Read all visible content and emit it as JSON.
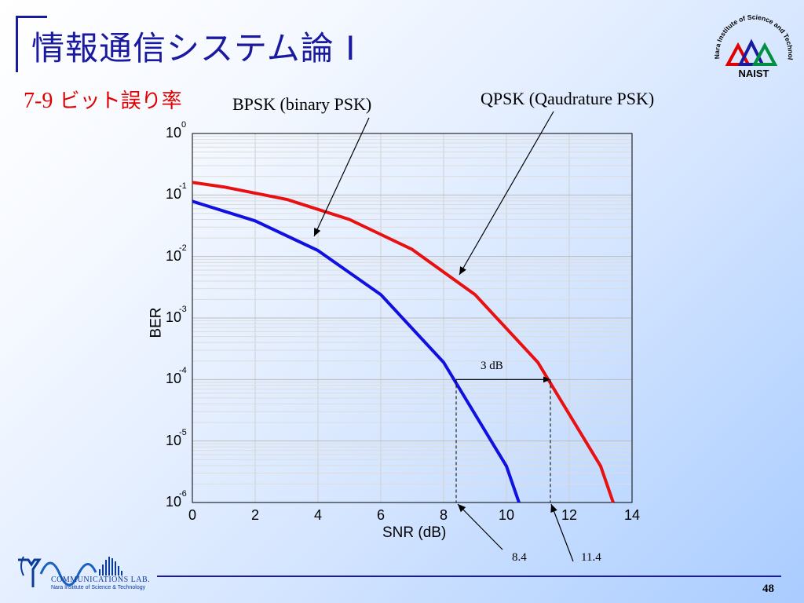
{
  "title": "情報通信システム論 I",
  "section": {
    "number": "7-9",
    "text": "ビット誤り率"
  },
  "labels": {
    "bpsk": "BPSK (binary PSK)",
    "qpsk": "QPSK (Qaudrature PSK)",
    "gap": "3 dB",
    "marker_left": "8.4",
    "marker_right": "11.4"
  },
  "logo": {
    "ring_text": "Nara Institute of Science and Technology",
    "short": "NAIST"
  },
  "lab": {
    "name": "COMMUNICATIONS LAB.",
    "sub": "Nara Institute of Science & Technology"
  },
  "page_number": "48",
  "colors": {
    "title": "#1a1aa0",
    "section": "#e00000",
    "bpsk": "#1010e0",
    "qpsk": "#e81010"
  },
  "chart_data": {
    "type": "line",
    "xlabel": "SNR (dB)",
    "ylabel": "BER",
    "xlim": [
      0,
      14
    ],
    "ylim_exponent": [
      -6,
      0
    ],
    "y_scale": "log",
    "x_ticks": [
      "0",
      "2",
      "4",
      "6",
      "8",
      "10",
      "12",
      "14"
    ],
    "y_ticks": [
      {
        "base": "10",
        "exp": "0"
      },
      {
        "base": "10",
        "exp": "-1"
      },
      {
        "base": "10",
        "exp": "-2"
      },
      {
        "base": "10",
        "exp": "-3"
      },
      {
        "base": "10",
        "exp": "-4"
      },
      {
        "base": "10",
        "exp": "-5"
      },
      {
        "base": "10",
        "exp": "-6"
      }
    ],
    "grid": true,
    "series": [
      {
        "key": "bpsk",
        "color": "#1010e0",
        "points": [
          [
            0,
            0.079
          ],
          [
            2,
            0.038
          ],
          [
            4,
            0.0125
          ],
          [
            6,
            0.0024
          ],
          [
            8,
            0.00019
          ],
          [
            10,
            3.9e-06
          ],
          [
            10.4,
            1e-06
          ]
        ]
      },
      {
        "key": "qpsk",
        "color": "#e81010",
        "points": [
          [
            0,
            0.16
          ],
          [
            1,
            0.135
          ],
          [
            3,
            0.085
          ],
          [
            5,
            0.04
          ],
          [
            7,
            0.013
          ],
          [
            9,
            0.0024
          ],
          [
            11,
            0.00019
          ],
          [
            13,
            3.9e-06
          ],
          [
            13.4,
            1e-06
          ]
        ]
      }
    ],
    "annotation": {
      "x_from": 8.4,
      "x_to": 11.4,
      "ber": 0.0001,
      "text": "3 dB"
    }
  }
}
